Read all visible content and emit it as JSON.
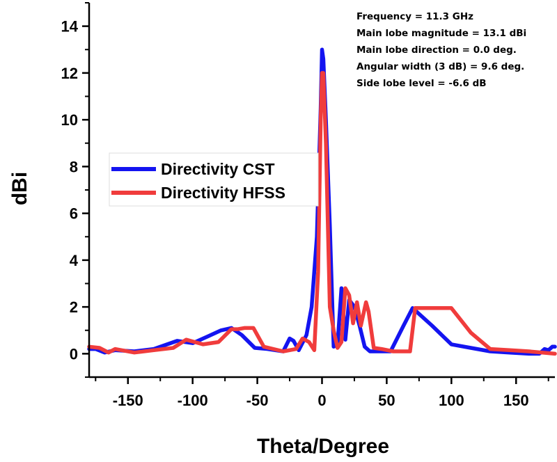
{
  "chart_data": {
    "type": "line",
    "title": "",
    "xlabel": "Theta/Degree",
    "ylabel": "dBi",
    "xlim": [
      -180,
      180
    ],
    "ylim": [
      -1,
      15
    ],
    "xticks": [
      -150,
      -100,
      -50,
      0,
      50,
      100,
      150
    ],
    "yticks": [
      0,
      2,
      4,
      6,
      8,
      10,
      12,
      14
    ],
    "legend_position": "center-left",
    "annotations": [
      "Frequency = 11.3 GHz",
      "Main lobe magnitude = 13.1 dBi",
      "Main lobe direction = 0.0 deg.",
      "Angular width (3 dB) = 9.6 deg.",
      "Side lobe level = -6.6 dB"
    ],
    "series": [
      {
        "name": "Directivity CST",
        "color": "#1414f0",
        "x": [
          -180,
          -175,
          -168,
          -160,
          -145,
          -130,
          -112,
          -100,
          -88,
          -78,
          -70,
          -62,
          -52,
          -42,
          -30,
          -25,
          -22,
          -18,
          -12,
          -8,
          -4,
          -1,
          0,
          1,
          3,
          6,
          9,
          12,
          15,
          18,
          21,
          25,
          29,
          33,
          37,
          40,
          45,
          53,
          63,
          70,
          85,
          100,
          115,
          130,
          145,
          160,
          168,
          172,
          175,
          178,
          180
        ],
        "y": [
          0.2,
          0.2,
          0.05,
          0.15,
          0.1,
          0.2,
          0.55,
          0.45,
          0.75,
          1.0,
          1.1,
          0.8,
          0.25,
          0.2,
          0.1,
          0.65,
          0.55,
          0.15,
          0.8,
          2.0,
          5.0,
          10.5,
          13.0,
          12.6,
          10.0,
          5.5,
          0.3,
          0.4,
          2.8,
          0.6,
          2.3,
          2.0,
          1.2,
          0.3,
          0.1,
          0.1,
          0.1,
          0.1,
          1.2,
          1.95,
          1.2,
          0.4,
          0.25,
          0.1,
          0.05,
          0.0,
          0.0,
          0.2,
          0.15,
          0.3,
          0.3
        ]
      },
      {
        "name": "Directivity HFSS",
        "color": "#f03c3c",
        "x": [
          -180,
          -172,
          -165,
          -160,
          -145,
          -130,
          -115,
          -105,
          -92,
          -80,
          -70,
          -65,
          -60,
          -53,
          -45,
          -30,
          -20,
          -15,
          -10,
          -6,
          -3,
          -1,
          0,
          1,
          3,
          6,
          9,
          12,
          15,
          18,
          21,
          24,
          27,
          30,
          34,
          36,
          40,
          46,
          55,
          68,
          72,
          85,
          100,
          115,
          130,
          145,
          160,
          180
        ],
        "y": [
          0.3,
          0.25,
          0.05,
          0.2,
          0.05,
          0.15,
          0.25,
          0.6,
          0.4,
          0.5,
          1.05,
          1.05,
          1.1,
          1.1,
          0.3,
          0.1,
          0.2,
          0.65,
          0.5,
          0.15,
          3.5,
          10.0,
          12.0,
          12.0,
          9.0,
          2.0,
          1.0,
          0.25,
          0.5,
          2.8,
          2.5,
          1.3,
          2.2,
          1.2,
          2.2,
          1.8,
          0.25,
          0.2,
          0.1,
          0.1,
          1.95,
          1.95,
          1.95,
          0.9,
          0.2,
          0.15,
          0.1,
          0.0
        ]
      }
    ]
  }
}
